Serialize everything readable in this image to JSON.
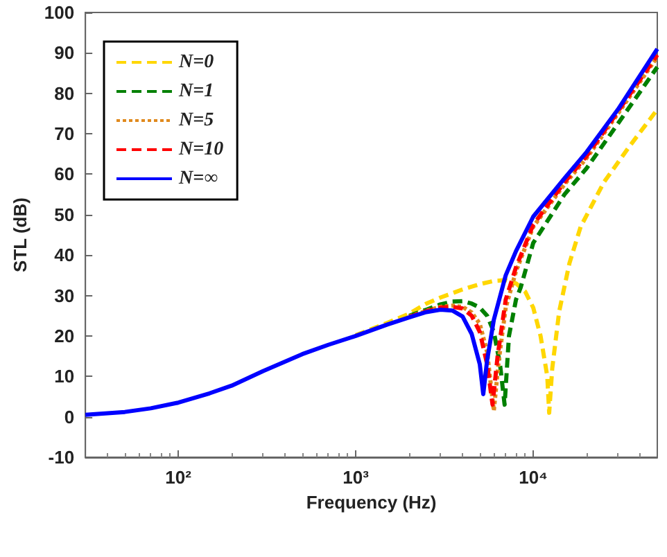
{
  "chart_data": {
    "type": "line",
    "xlabel": "Frequency (Hz)",
    "ylabel": "STL (dB)",
    "log": "x",
    "xlim": [
      30,
      50000
    ],
    "ylim": [
      -10,
      100
    ],
    "xticks": [
      {
        "value": 100,
        "label": "10²"
      },
      {
        "value": 1000,
        "label": "10³"
      },
      {
        "value": 10000,
        "label": "10⁴"
      }
    ],
    "yticks": [
      -10,
      0,
      10,
      20,
      30,
      40,
      50,
      60,
      70,
      80,
      90,
      100
    ],
    "grid": false,
    "legend": "top left",
    "marker": "none",
    "series": [
      {
        "name": "N=0",
        "color": "#ffd700",
        "line_style": "dashed",
        "x": [
          1000,
          1500,
          2000,
          2500,
          3000,
          4000,
          5000,
          6000,
          7000,
          8000,
          9000,
          10000,
          11000,
          12000,
          12300,
          12800,
          14000,
          16000,
          18500,
          25000,
          35000,
          50000
        ],
        "values": [
          20.2,
          23.2,
          25.5,
          28,
          29.5,
          31.5,
          32.8,
          33.6,
          33.8,
          33,
          31,
          27,
          20,
          10,
          1,
          12,
          26,
          38,
          47,
          58,
          67,
          76
        ]
      },
      {
        "name": "N=1",
        "color": "#008000",
        "line_style": "dashed",
        "x": [
          2000,
          2500,
          3000,
          3500,
          4000,
          4500,
          5000,
          5500,
          6000,
          6500,
          6900,
          7300,
          8000,
          8500,
          10000,
          15000,
          20000,
          30000,
          50000
        ],
        "values": [
          25,
          26.5,
          27.8,
          28.5,
          28.6,
          28,
          27,
          25,
          21,
          13,
          3,
          20,
          29,
          32,
          43,
          55,
          61.5,
          72.5,
          86.5
        ]
      },
      {
        "name": "N=5",
        "color": "#e08a1e",
        "line_style": "dotted",
        "x": [
          2000,
          2500,
          3000,
          3500,
          4000,
          4500,
          5000,
          5500,
          6000,
          6400,
          7000,
          8000,
          10000,
          15000,
          20000,
          30000,
          50000
        ],
        "values": [
          24.8,
          26.2,
          27.2,
          27.5,
          27.2,
          25.8,
          23,
          16,
          1.5,
          14,
          27,
          36,
          47,
          57.5,
          64,
          75,
          89
        ]
      },
      {
        "name": "N=10",
        "color": "#ff0000",
        "line_style": "dashed",
        "x": [
          2000,
          2500,
          3000,
          3500,
          4000,
          4500,
          5000,
          5500,
          5900,
          6300,
          7000,
          8000,
          10000,
          15000,
          20000,
          30000,
          50000
        ],
        "values": [
          24.7,
          26.1,
          27,
          27.2,
          26.8,
          25,
          21,
          13,
          3,
          15,
          29,
          37,
          47.5,
          58,
          64.5,
          75.5,
          89.5
        ]
      },
      {
        "name": "N=∞",
        "color": "#0000ff",
        "line_style": "solid",
        "x": [
          30,
          50,
          70,
          100,
          150,
          200,
          300,
          500,
          700,
          1000,
          1500,
          2000,
          2500,
          3000,
          3500,
          4000,
          4500,
          5000,
          5230,
          5500,
          6000,
          7000,
          8000,
          10000,
          15000,
          20000,
          30000,
          50000
        ],
        "values": [
          0.5,
          1.2,
          2.1,
          3.5,
          5.8,
          7.7,
          11.3,
          15.5,
          17.8,
          20,
          22.8,
          24.6,
          25.9,
          26.5,
          26.3,
          24.8,
          20.5,
          13,
          5.6,
          14,
          24,
          35,
          41,
          49.5,
          59,
          65.5,
          76,
          91
        ]
      }
    ]
  }
}
